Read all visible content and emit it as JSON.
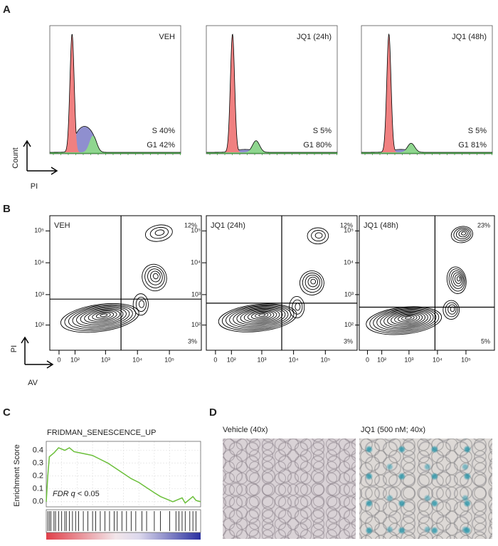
{
  "panel_a": {
    "label": "A",
    "ylabel": "Count",
    "xlabel": "PI",
    "plots": [
      {
        "title": "VEH",
        "s": "S 40%",
        "g1": "G1 42%"
      },
      {
        "title": "JQ1 (24h)",
        "s": "S 5%",
        "g1": "G1 80%"
      },
      {
        "title": "JQ1 (48h)",
        "s": "S 5%",
        "g1": "G1 81%"
      }
    ]
  },
  "panel_b": {
    "label": "B",
    "ylabel": "PI",
    "xlabel": "AV",
    "scale": "biexponential",
    "xlim": [
      -50,
      1000000
    ],
    "ylim": [
      -50,
      300000
    ],
    "xticks": [
      0,
      {
        "value": 100,
        "label": "10²"
      },
      {
        "value": 1000,
        "label": "10³"
      },
      {
        "value": 10000,
        "label": "10⁴"
      },
      {
        "value": 100000,
        "label": "10⁵"
      }
    ],
    "yticks": [
      {
        "value": 100,
        "label": "10²"
      },
      {
        "value": 1000,
        "label": "10³"
      },
      {
        "value": 10000,
        "label": "10⁴"
      },
      {
        "value": 100000,
        "label": "10⁵"
      }
    ],
    "plots": [
      {
        "title": "VEH",
        "upper_right": "12%",
        "lower_right": "3%"
      },
      {
        "title": "JQ1 (24h)",
        "upper_right": "12%",
        "lower_right": "3%"
      },
      {
        "title": "JQ1 (48h)",
        "upper_right": "23%",
        "lower_right": "5%"
      }
    ]
  },
  "panel_c": {
    "label": "C",
    "title": "FRIDMAN_SENESCENCE_UP",
    "ylabel": "Enrichment Score",
    "annotation_italic": "FDR q",
    "annotation": "< 0.05",
    "xlim": [
      0,
      1
    ],
    "ylim": [
      -0.04,
      0.47
    ],
    "yticks": [
      {
        "value": 0,
        "label": "0.0"
      },
      0.1,
      0.2,
      0.3,
      0.4
    ],
    "x": [
      0,
      0.01,
      0.02,
      0.05,
      0.08,
      0.1,
      0.12,
      0.15,
      0.18,
      0.22,
      0.26,
      0.3,
      0.35,
      0.4,
      0.45,
      0.5,
      0.55,
      0.6,
      0.65,
      0.7,
      0.74,
      0.78,
      0.82,
      0.86,
      0.88,
      0.9,
      0.93,
      0.95,
      0.97,
      1.0
    ],
    "values": [
      0,
      0.2,
      0.35,
      0.38,
      0.42,
      0.41,
      0.4,
      0.42,
      0.39,
      0.38,
      0.37,
      0.36,
      0.33,
      0.3,
      0.26,
      0.22,
      0.18,
      0.15,
      0.11,
      0.07,
      0.04,
      0.02,
      0.0,
      0.02,
      0.03,
      -0.01,
      0.02,
      0.04,
      0.01,
      0.0
    ],
    "hits": [
      0.01,
      0.02,
      0.03,
      0.05,
      0.06,
      0.08,
      0.1,
      0.12,
      0.13,
      0.15,
      0.17,
      0.19,
      0.21,
      0.24,
      0.27,
      0.3,
      0.32,
      0.35,
      0.38,
      0.41,
      0.44,
      0.46,
      0.49,
      0.52,
      0.55,
      0.58,
      0.62,
      0.65,
      0.7,
      0.74,
      0.8,
      0.84,
      0.86,
      0.88,
      0.9,
      0.93,
      0.95,
      0.97
    ]
  },
  "panel_d": {
    "label": "D",
    "images": [
      {
        "caption": "Vehicle (40x)"
      },
      {
        "caption": "JQ1 (500 nM; 40x)"
      }
    ]
  }
}
